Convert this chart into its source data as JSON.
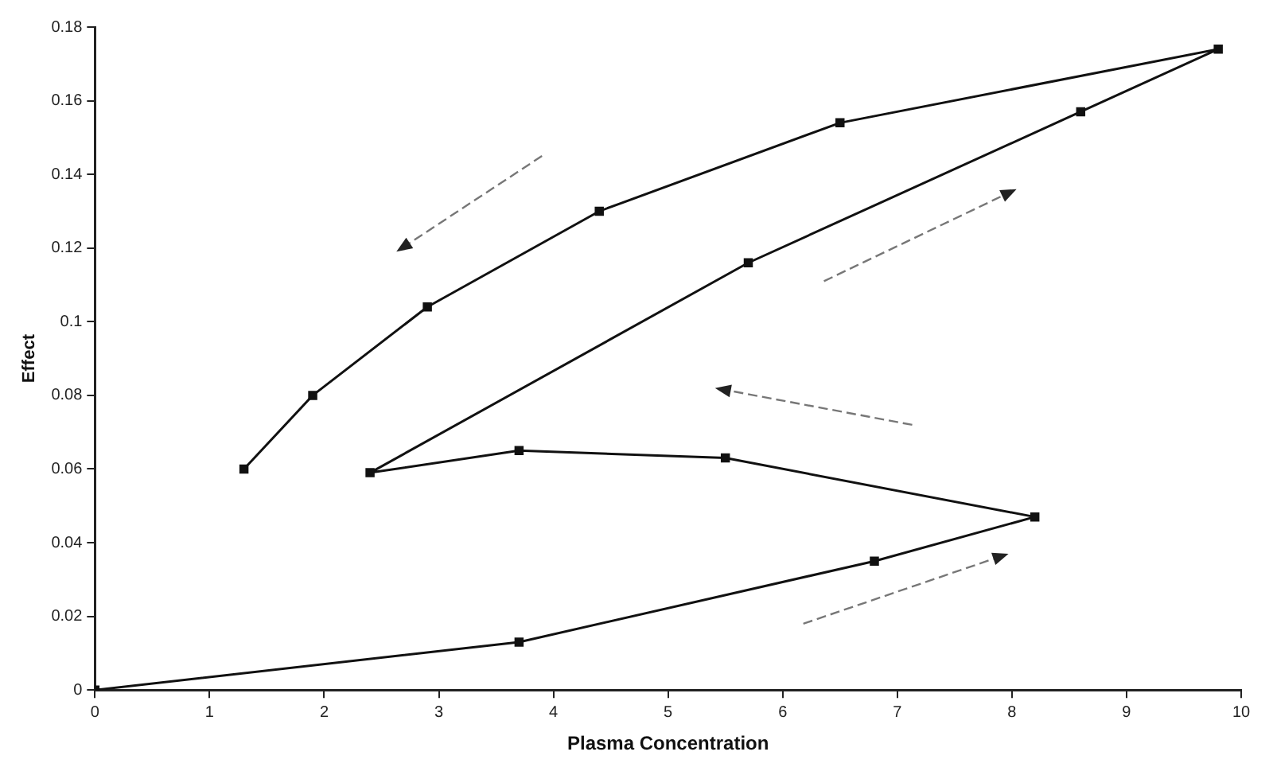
{
  "chart_data": {
    "type": "line",
    "xlabel": "Plasma Concentration",
    "ylabel": "Effect",
    "xlim": [
      0,
      10
    ],
    "xticks": [
      0,
      1,
      2,
      3,
      4,
      5,
      6,
      7,
      8,
      9,
      10
    ],
    "ylim": [
      0,
      0.18
    ],
    "yticks": [
      0,
      0.02,
      0.04,
      0.06,
      0.08,
      0.1,
      0.12,
      0.14,
      0.16,
      0.18
    ],
    "grid": false,
    "legend": false,
    "marker": "square",
    "line_style": "solid",
    "series": [
      {
        "color": "#111111",
        "x": [
          0,
          3.7,
          6.8,
          8.2,
          5.5,
          3.7,
          2.4,
          5.7,
          8.6,
          9.8,
          6.5,
          4.4,
          2.9,
          1.9,
          1.3
        ],
        "values": [
          0,
          0.013,
          0.035,
          0.047,
          0.063,
          0.065,
          0.059,
          0.116,
          0.157,
          0.174,
          0.154,
          0.13,
          0.104,
          0.08,
          0.06
        ]
      }
    ]
  }
}
